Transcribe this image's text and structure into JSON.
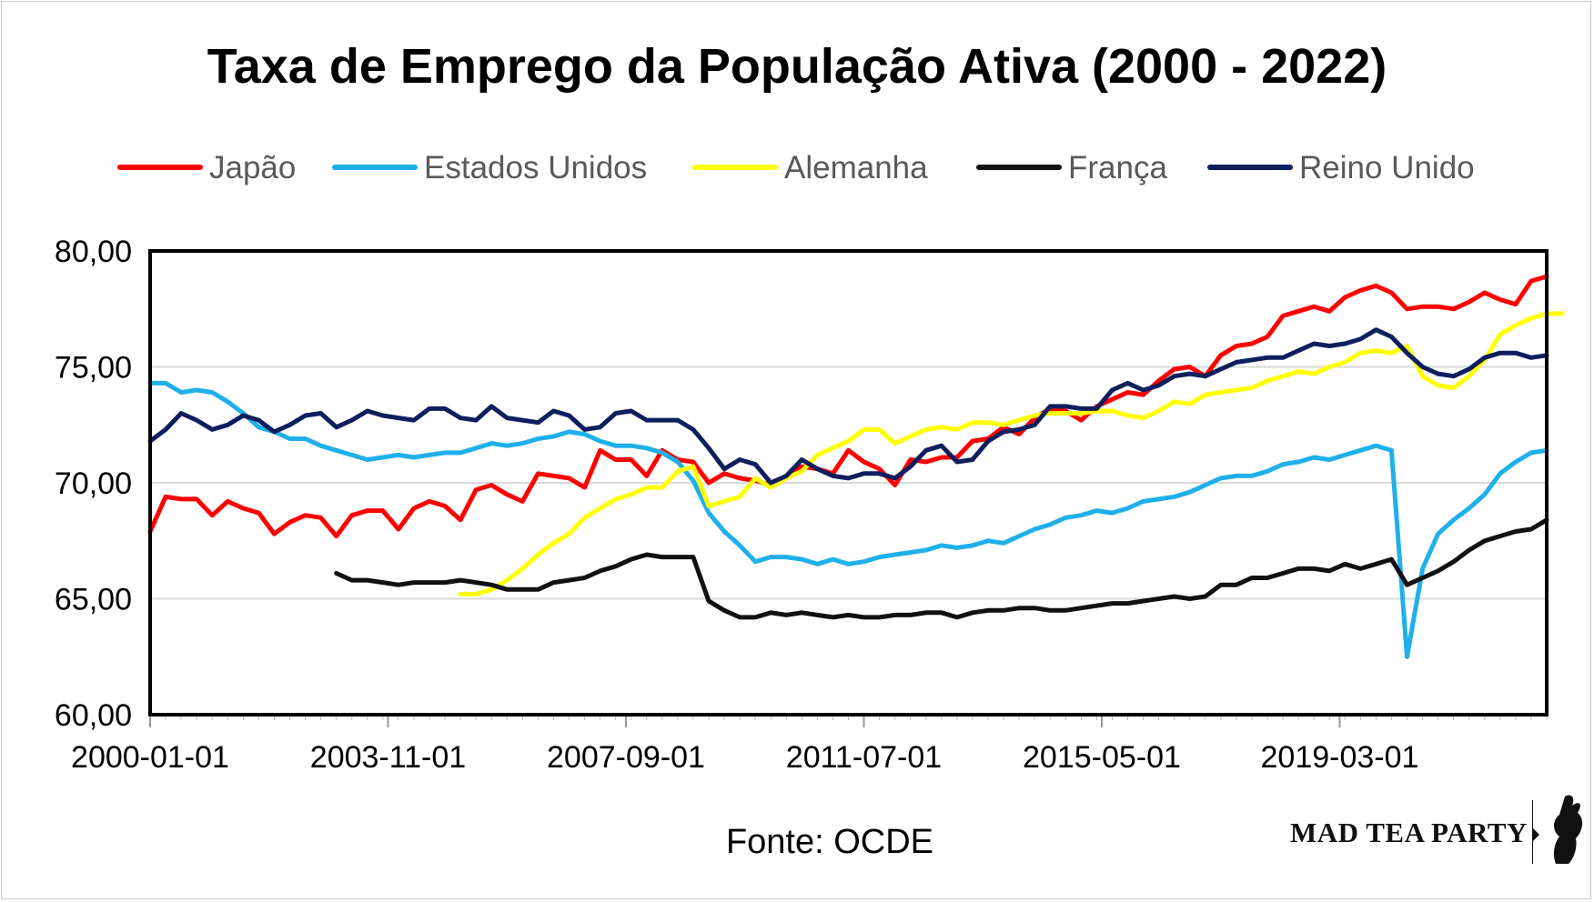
{
  "chart_data": {
    "type": "line",
    "title": "Taxa de Emprego da População Ativa (2000 - 2022)",
    "source": "Fonte: OCDE",
    "brand": "MAD TEA PARTY",
    "ylim": [
      60,
      80
    ],
    "yticks": [
      "60,00",
      "65,00",
      "70,00",
      "75,00",
      "80,00"
    ],
    "xticks": [
      "2000-01-01",
      "2003-11-01",
      "2007-09-01",
      "2011-07-01",
      "2015-05-01",
      "2019-03-01"
    ],
    "x_start_year": 2000,
    "x_step_years": 0.25,
    "xlim_years": [
      2000,
      2022.5
    ],
    "legend_position": "top",
    "series": [
      {
        "name": "Japão",
        "color": "#ff0000",
        "start": 2000.0,
        "values": [
          67.9,
          69.4,
          69.3,
          69.3,
          68.6,
          69.2,
          68.9,
          68.7,
          67.8,
          68.3,
          68.6,
          68.5,
          67.7,
          68.6,
          68.8,
          68.8,
          68.0,
          68.9,
          69.2,
          69.0,
          68.4,
          69.7,
          69.9,
          69.5,
          69.2,
          70.4,
          70.3,
          70.2,
          69.8,
          71.4,
          71.0,
          71.0,
          70.3,
          71.4,
          71.0,
          70.9,
          70.0,
          70.4,
          70.2,
          70.1,
          69.9,
          70.3,
          70.7,
          70.6,
          70.4,
          71.4,
          70.9,
          70.6,
          69.9,
          71.0,
          70.9,
          71.1,
          71.1,
          71.8,
          71.9,
          72.4,
          72.1,
          72.8,
          73.2,
          73.1,
          72.7,
          73.3,
          73.6,
          73.9,
          73.8,
          74.4,
          74.9,
          75.0,
          74.6,
          75.5,
          75.9,
          76.0,
          76.3,
          77.2,
          77.4,
          77.6,
          77.4,
          78.0,
          78.3,
          78.5,
          78.2,
          77.5,
          77.6,
          77.6,
          77.5,
          77.8,
          78.2,
          77.9,
          77.7,
          78.7,
          78.9
        ]
      },
      {
        "name": "Estados Unidos",
        "color": "#1fb0ea",
        "start": 2000.0,
        "values": [
          74.3,
          74.3,
          73.9,
          74.0,
          73.9,
          73.5,
          73.0,
          72.4,
          72.2,
          71.9,
          71.9,
          71.6,
          71.4,
          71.2,
          71.0,
          71.1,
          71.2,
          71.1,
          71.2,
          71.3,
          71.3,
          71.5,
          71.7,
          71.6,
          71.7,
          71.9,
          72.0,
          72.2,
          72.1,
          71.8,
          71.6,
          71.6,
          71.5,
          71.3,
          70.9,
          70.1,
          68.7,
          67.9,
          67.3,
          66.6,
          66.8,
          66.8,
          66.7,
          66.5,
          66.7,
          66.5,
          66.6,
          66.8,
          66.9,
          67.0,
          67.1,
          67.3,
          67.2,
          67.3,
          67.5,
          67.4,
          67.7,
          68.0,
          68.2,
          68.5,
          68.6,
          68.8,
          68.7,
          68.9,
          69.2,
          69.3,
          69.4,
          69.6,
          69.9,
          70.2,
          70.3,
          70.3,
          70.5,
          70.8,
          70.9,
          71.1,
          71.0,
          71.2,
          71.4,
          71.6,
          71.4,
          62.5,
          66.3,
          67.8,
          68.4,
          68.9,
          69.5,
          70.4,
          70.9,
          71.3,
          71.4
        ]
      },
      {
        "name": "Alemanha",
        "color": "#ffff00",
        "start": 2005.0,
        "values": [
          65.2,
          65.2,
          65.4,
          65.8,
          66.3,
          66.9,
          67.4,
          67.8,
          68.5,
          68.9,
          69.3,
          69.5,
          69.8,
          69.8,
          70.5,
          70.7,
          69.0,
          69.2,
          69.4,
          70.2,
          69.8,
          70.2,
          70.5,
          71.2,
          71.5,
          71.8,
          72.3,
          72.3,
          71.7,
          72.0,
          72.3,
          72.4,
          72.3,
          72.6,
          72.6,
          72.5,
          72.7,
          72.9,
          73.0,
          73.0,
          73.0,
          73.1,
          73.1,
          72.9,
          72.8,
          73.1,
          73.5,
          73.4,
          73.8,
          73.9,
          74.0,
          74.1,
          74.4,
          74.6,
          74.8,
          74.7,
          75.0,
          75.2,
          75.6,
          75.7,
          75.6,
          75.9,
          74.6,
          74.2,
          74.1,
          74.6,
          75.3,
          76.4,
          76.8,
          77.1,
          77.3,
          77.3
        ]
      },
      {
        "name": "França",
        "color": "#111111",
        "start": 2003.0,
        "values": [
          66.1,
          65.8,
          65.8,
          65.7,
          65.6,
          65.7,
          65.7,
          65.7,
          65.8,
          65.7,
          65.6,
          65.4,
          65.4,
          65.4,
          65.7,
          65.8,
          65.9,
          66.2,
          66.4,
          66.7,
          66.9,
          66.8,
          66.8,
          66.8,
          64.9,
          64.5,
          64.2,
          64.2,
          64.4,
          64.3,
          64.4,
          64.3,
          64.2,
          64.3,
          64.2,
          64.2,
          64.3,
          64.3,
          64.4,
          64.4,
          64.2,
          64.4,
          64.5,
          64.5,
          64.6,
          64.6,
          64.5,
          64.5,
          64.6,
          64.7,
          64.8,
          64.8,
          64.9,
          65.0,
          65.1,
          65.0,
          65.1,
          65.6,
          65.6,
          65.9,
          65.9,
          66.1,
          66.3,
          66.3,
          66.2,
          66.5,
          66.3,
          66.5,
          66.7,
          65.6,
          65.9,
          66.2,
          66.6,
          67.1,
          67.5,
          67.7,
          67.9,
          68.0,
          68.4
        ]
      },
      {
        "name": "Reino Unido",
        "color": "#0f1f5e",
        "start": 2000.0,
        "values": [
          71.8,
          72.3,
          73.0,
          72.7,
          72.3,
          72.5,
          72.9,
          72.7,
          72.2,
          72.5,
          72.9,
          73.0,
          72.4,
          72.7,
          73.1,
          72.9,
          72.8,
          72.7,
          73.2,
          73.2,
          72.8,
          72.7,
          73.3,
          72.8,
          72.7,
          72.6,
          73.1,
          72.9,
          72.3,
          72.4,
          73.0,
          73.1,
          72.7,
          72.7,
          72.7,
          72.3,
          71.5,
          70.6,
          71.0,
          70.8,
          70.0,
          70.3,
          71.0,
          70.6,
          70.3,
          70.2,
          70.4,
          70.4,
          70.2,
          70.7,
          71.4,
          71.6,
          70.9,
          71.0,
          71.8,
          72.2,
          72.3,
          72.5,
          73.3,
          73.3,
          73.2,
          73.2,
          74.0,
          74.3,
          74.0,
          74.2,
          74.6,
          74.7,
          74.6,
          74.9,
          75.2,
          75.3,
          75.4,
          75.4,
          75.7,
          76.0,
          75.9,
          76.0,
          76.2,
          76.6,
          76.3,
          75.6,
          75.0,
          74.7,
          74.6,
          74.9,
          75.4,
          75.6,
          75.6,
          75.4,
          75.5
        ]
      }
    ]
  }
}
